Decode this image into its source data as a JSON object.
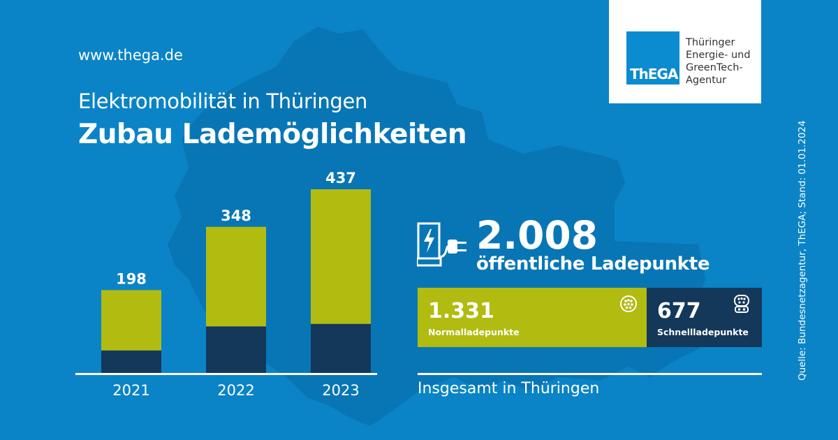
{
  "header": {
    "website": "www.thega.de",
    "subtitle": "Elektromobilität in Thüringen",
    "title": "Zubau Lademöglichkeiten"
  },
  "logo": {
    "mark": "ThEGA",
    "lines": [
      "Thüringer",
      "Energie- und",
      "GreenTech-",
      "Agentur"
    ]
  },
  "source": "Quelle: Bundesnetzagentur, ThEGA; Stand: 01.01.2024",
  "chart_data": {
    "type": "bar",
    "stacked": true,
    "categories": [
      "2021",
      "2022",
      "2023"
    ],
    "totals": [
      198,
      348,
      437
    ],
    "total_labels": [
      "198",
      "348",
      "437"
    ],
    "series": [
      {
        "color": "#13385a",
        "values": [
          55,
          112,
          118
        ]
      },
      {
        "color": "#b1bb10",
        "values": [
          143,
          236,
          319
        ]
      }
    ],
    "ylim": [
      0,
      437
    ],
    "grid": false
  },
  "summary": {
    "total_value": "2.008",
    "total_label": "öffentliche Ladepunkte",
    "normal": {
      "value": "1.331",
      "label": "Normalladepunkte",
      "count": 1331
    },
    "fast": {
      "value": "677",
      "label": "Schnellladepunkte",
      "count": 677
    },
    "footer": "Insgesamt in Thüringen"
  },
  "colors": {
    "background": "#0a84c6",
    "green": "#b1bb10",
    "navy": "#13385a",
    "logo_blue": "#0b8bd0"
  }
}
